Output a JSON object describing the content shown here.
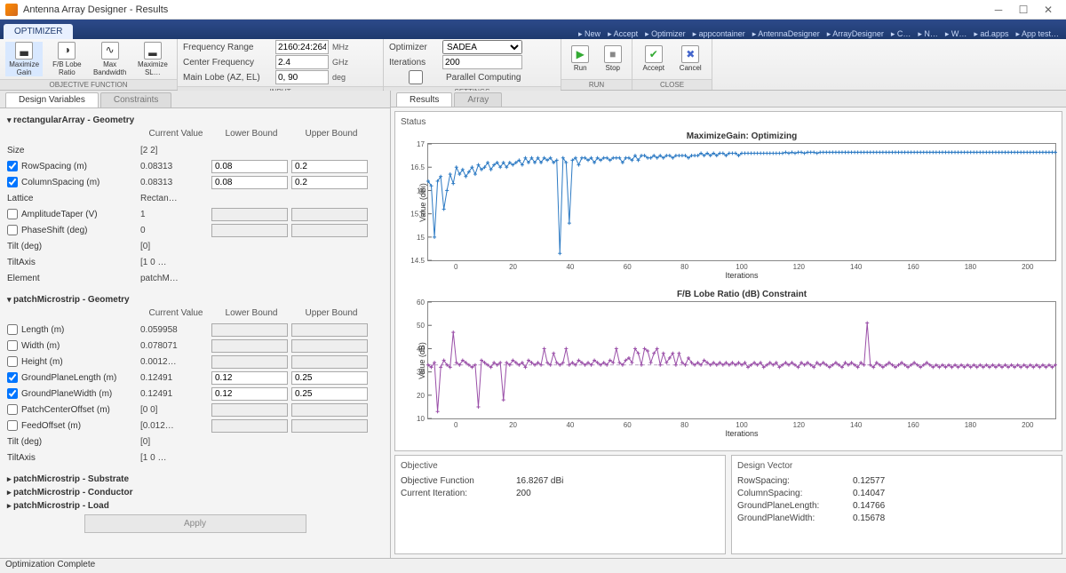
{
  "window": {
    "title": "Antenna Array Designer - Results"
  },
  "mainTab": "OPTIMIZER",
  "ribbonRight": [
    "New",
    "Accept",
    "Optimizer",
    "appcontainer",
    "AntennaDesigner",
    "ArrayDesigner",
    "C…",
    "N…",
    "W…",
    "ad.apps",
    "App test…"
  ],
  "objFnButtons": [
    {
      "label": "Maximize Gain",
      "glyph": "▃"
    },
    {
      "label": "F/B Lobe Ratio",
      "glyph": "◑"
    },
    {
      "label": "Max Bandwidth",
      "glyph": "∿"
    },
    {
      "label": "Maximize SL…",
      "glyph": "▂"
    }
  ],
  "groups": {
    "objfn": "OBJECTIVE FUNCTION",
    "input": "INPUT",
    "settings": "SETTINGS",
    "run": "RUN",
    "close": "CLOSE"
  },
  "input": {
    "freqRange": {
      "label": "Frequency Range",
      "value": "2160:24:2640",
      "unit": "MHz"
    },
    "centerFreq": {
      "label": "Center Frequency",
      "value": "2.4",
      "unit": "GHz"
    },
    "mainLobe": {
      "label": "Main Lobe (AZ, EL)",
      "value": "0, 90",
      "unit": "deg"
    }
  },
  "settings": {
    "optimizer": {
      "label": "Optimizer",
      "value": "SADEA"
    },
    "iterations": {
      "label": "Iterations",
      "value": "200"
    },
    "parallel": {
      "label": "Parallel Computing",
      "checked": false
    }
  },
  "runButtons": {
    "run": "Run",
    "stop": "Stop",
    "accept": "Accept",
    "cancel": "Cancel"
  },
  "leftTabs": {
    "a": "Design Variables",
    "b": "Constraints"
  },
  "rightTabs": {
    "a": "Results",
    "b": "Array"
  },
  "dvHeaders": {
    "cv": "Current Value",
    "lb": "Lower Bound",
    "ub": "Upper Bound"
  },
  "rectGroup": "rectangularArray - Geometry",
  "rectRows": [
    {
      "name": "Size",
      "cv": "[2 2]",
      "chk": null
    },
    {
      "name": "RowSpacing (m)",
      "cv": "0.08313",
      "lb": "0.08",
      "ub": "0.2",
      "chk": true
    },
    {
      "name": "ColumnSpacing (m)",
      "cv": "0.08313",
      "lb": "0.08",
      "ub": "0.2",
      "chk": true
    },
    {
      "name": "Lattice",
      "cv": "Rectan…",
      "chk": null
    },
    {
      "name": "AmplitudeTaper (V)",
      "cv": "1",
      "lb": "",
      "ub": "",
      "chk": false,
      "dis": true
    },
    {
      "name": "PhaseShift (deg)",
      "cv": "0",
      "lb": "",
      "ub": "",
      "chk": false,
      "dis": true
    },
    {
      "name": "Tilt (deg)",
      "cv": "[0]",
      "chk": null
    },
    {
      "name": "TiltAxis",
      "cv": "[1 0 …",
      "chk": null
    },
    {
      "name": "Element",
      "cv": "patchM…",
      "chk": null
    }
  ],
  "patchGroup": "patchMicrostrip - Geometry",
  "patchRows": [
    {
      "name": "Length (m)",
      "cv": "0.059958",
      "lb": "",
      "ub": "",
      "chk": false,
      "dis": true
    },
    {
      "name": "Width (m)",
      "cv": "0.078071",
      "lb": "",
      "ub": "",
      "chk": false,
      "dis": true
    },
    {
      "name": "Height (m)",
      "cv": "0.0012…",
      "lb": "",
      "ub": "",
      "chk": false,
      "dis": true
    },
    {
      "name": "GroundPlaneLength (m)",
      "cv": "0.12491",
      "lb": "0.12",
      "ub": "0.25",
      "chk": true
    },
    {
      "name": "GroundPlaneWidth (m)",
      "cv": "0.12491",
      "lb": "0.12",
      "ub": "0.25",
      "chk": true
    },
    {
      "name": "PatchCenterOffset (m)",
      "cv": "[0 0]",
      "lb": "",
      "ub": "",
      "chk": false,
      "dis": true
    },
    {
      "name": "FeedOffset (m)",
      "cv": "[0.012…",
      "lb": "",
      "ub": "",
      "chk": false,
      "dis": true
    },
    {
      "name": "Tilt (deg)",
      "cv": "[0]",
      "chk": null
    },
    {
      "name": "TiltAxis",
      "cv": "[1 0 …",
      "chk": null
    }
  ],
  "closedGroups": [
    "patchMicrostrip - Substrate",
    "patchMicrostrip - Conductor",
    "patchMicrostrip - Load"
  ],
  "applyLabel": "Apply",
  "statusHeader": "Status",
  "chart1": {
    "title": "MaximizeGain: Optimizing",
    "ylabel": "Value (dBi)",
    "xlabel": "Iterations",
    "color": "#2e7bc4",
    "xlim": [
      0,
      200
    ],
    "ylim": [
      14.5,
      17
    ],
    "xticks": [
      0,
      20,
      40,
      60,
      80,
      100,
      120,
      140,
      160,
      180,
      200
    ],
    "yticks": [
      14.5,
      15,
      15.5,
      16,
      16.5,
      17
    ],
    "values": [
      16.2,
      16.1,
      15.0,
      16.2,
      16.3,
      15.6,
      16.0,
      16.35,
      16.15,
      16.5,
      16.35,
      16.45,
      16.3,
      16.4,
      16.5,
      16.35,
      16.55,
      16.45,
      16.5,
      16.6,
      16.45,
      16.55,
      16.6,
      16.5,
      16.6,
      16.5,
      16.6,
      16.55,
      16.6,
      16.65,
      16.55,
      16.7,
      16.6,
      16.7,
      16.6,
      16.7,
      16.6,
      16.7,
      16.65,
      16.7,
      16.6,
      16.65,
      14.65,
      16.7,
      16.6,
      15.3,
      16.65,
      16.7,
      16.55,
      16.7,
      16.7,
      16.65,
      16.7,
      16.6,
      16.7,
      16.65,
      16.7,
      16.7,
      16.65,
      16.7,
      16.7,
      16.7,
      16.6,
      16.7,
      16.7,
      16.65,
      16.75,
      16.65,
      16.75,
      16.75,
      16.7,
      16.7,
      16.75,
      16.7,
      16.75,
      16.7,
      16.75,
      16.75,
      16.7,
      16.75,
      16.75,
      16.75,
      16.75,
      16.7,
      16.75,
      16.75,
      16.75,
      16.8,
      16.75,
      16.8,
      16.75,
      16.8,
      16.75,
      16.8,
      16.8,
      16.75,
      16.8,
      16.8,
      16.8,
      16.75,
      16.8,
      16.8,
      16.8,
      16.8,
      16.8,
      16.8,
      16.8,
      16.8,
      16.8,
      16.8,
      16.8,
      16.8,
      16.8,
      16.8,
      16.82,
      16.8,
      16.82,
      16.8,
      16.82,
      16.82,
      16.8,
      16.82,
      16.82,
      16.82,
      16.8,
      16.82,
      16.82,
      16.82,
      16.82,
      16.82,
      16.82,
      16.82,
      16.82,
      16.82,
      16.82,
      16.82,
      16.82,
      16.82,
      16.82,
      16.82,
      16.82,
      16.82,
      16.82,
      16.82,
      16.82,
      16.82,
      16.82,
      16.82,
      16.82,
      16.82,
      16.82,
      16.82,
      16.82,
      16.82,
      16.82,
      16.82,
      16.82,
      16.82,
      16.82,
      16.82,
      16.82,
      16.82,
      16.82,
      16.82,
      16.82,
      16.82,
      16.82,
      16.82,
      16.82,
      16.82,
      16.82,
      16.82,
      16.82,
      16.82,
      16.82,
      16.82,
      16.82,
      16.82,
      16.82,
      16.82,
      16.82,
      16.82,
      16.82,
      16.82,
      16.82,
      16.82,
      16.82,
      16.82,
      16.82,
      16.82,
      16.82,
      16.82,
      16.82,
      16.82,
      16.82,
      16.82,
      16.82,
      16.82,
      16.82,
      16.82,
      16.82
    ]
  },
  "chart2": {
    "title": "F/B Lobe Ratio (dB) Constraint",
    "ylabel": "Value (dB)",
    "xlabel": "Iterations",
    "color": "#9a4fa8",
    "dashColor": "#b89fc2",
    "xlim": [
      0,
      200
    ],
    "ylim": [
      10,
      60
    ],
    "xticks": [
      0,
      20,
      40,
      60,
      80,
      100,
      120,
      140,
      160,
      180,
      200
    ],
    "yticks": [
      10,
      20,
      30,
      40,
      50,
      60
    ],
    "dashed": 33,
    "values": [
      33,
      32,
      34,
      13,
      32,
      35,
      33,
      32,
      47,
      34,
      33,
      35,
      34,
      33,
      32,
      33,
      15,
      35,
      34,
      33,
      32,
      34,
      33,
      34,
      18,
      34,
      33,
      35,
      34,
      33,
      34,
      32,
      35,
      34,
      33,
      34,
      33,
      40,
      34,
      33,
      38,
      34,
      33,
      34,
      40,
      33,
      34,
      33,
      35,
      34,
      33,
      34,
      33,
      35,
      34,
      33,
      34,
      33,
      35,
      34,
      40,
      34,
      33,
      35,
      36,
      34,
      40,
      38,
      33,
      40,
      39,
      34,
      38,
      40,
      33,
      38,
      34,
      36,
      38,
      33,
      38,
      34,
      33,
      36,
      34,
      33,
      34,
      33,
      35,
      34,
      33,
      34,
      33,
      34,
      33,
      34,
      33,
      34,
      33,
      34,
      33,
      34,
      32,
      33,
      34,
      33,
      34,
      32,
      33,
      34,
      33,
      34,
      32,
      33,
      34,
      33,
      34,
      33,
      32,
      34,
      33,
      34,
      33,
      32,
      34,
      33,
      34,
      33,
      32,
      33,
      34,
      33,
      32,
      34,
      33,
      34,
      33,
      32,
      34,
      33,
      51,
      33,
      32,
      34,
      33,
      32,
      33,
      34,
      33,
      32,
      33,
      34,
      33,
      32,
      33,
      34,
      33,
      32,
      33,
      34,
      33,
      32,
      33,
      32,
      33,
      32,
      33,
      32,
      33,
      32,
      33,
      32,
      33,
      32,
      33,
      32,
      33,
      32,
      33,
      32,
      33,
      32,
      33,
      32,
      33,
      32,
      33,
      32,
      33,
      32,
      33,
      32,
      33,
      32,
      33,
      32,
      33,
      32,
      33,
      32,
      33
    ]
  },
  "objectivePanel": {
    "title": "Objective",
    "rows": [
      {
        "k": "Objective Function",
        "v": "16.8267 dBi"
      },
      {
        "k": "Current Iteration:",
        "v": "200"
      }
    ]
  },
  "vectorPanel": {
    "title": "Design Vector",
    "rows": [
      {
        "k": "RowSpacing:",
        "v": "0.12577"
      },
      {
        "k": "ColumnSpacing:",
        "v": "0.14047"
      },
      {
        "k": "GroundPlaneLength:",
        "v": "0.14766"
      },
      {
        "k": "GroundPlaneWidth:",
        "v": "0.15678"
      }
    ]
  },
  "statusbar": "Optimization Complete"
}
